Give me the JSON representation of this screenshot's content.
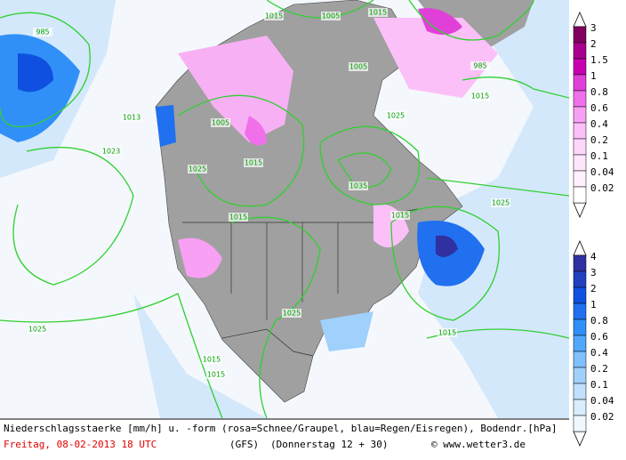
{
  "map": {
    "isobar_labels": [
      "985",
      "1015",
      "1005",
      "1015",
      "1013",
      "1023",
      "1005",
      "1015",
      "1025",
      "1025",
      "1035",
      "1015",
      "1015",
      "1025",
      "1025",
      "1025",
      "1015",
      "1015",
      "1015",
      "985",
      "1005",
      "1015"
    ]
  },
  "legend_snow": {
    "labels": [
      "3",
      "2",
      "1.5",
      "1",
      "0.8",
      "0.6",
      "0.4",
      "0.2",
      "0.1",
      "0.04",
      "0.02"
    ],
    "colors": [
      "#800060",
      "#a8008c",
      "#c800b0",
      "#e040d8",
      "#f070ec",
      "#f8a0f4",
      "#fcc0f8",
      "#fdd6fb",
      "#fee6fd",
      "#fff2fe",
      "#ffffff"
    ]
  },
  "legend_rain": {
    "labels": [
      "4",
      "3",
      "2",
      "1",
      "0.8",
      "0.6",
      "0.4",
      "0.2",
      "0.1",
      "0.04",
      "0.02"
    ],
    "colors": [
      "#3030a0",
      "#2040c0",
      "#1050e0",
      "#2070f0",
      "#3090f8",
      "#50a8fc",
      "#80c0fc",
      "#a0d0fc",
      "#c0e0fe",
      "#d8eefe",
      "#f0f8ff"
    ]
  },
  "caption": {
    "line1": "Niederschlagsstaerke [mm/h] u. -form (rosa=Schnee/Graupel, blau=Regen/Eisregen), Bodendr.[hPa]",
    "date": "Freitag, 08-02-2013  18 UTC",
    "model": "(GFS)",
    "run": "(Donnerstag 12 + 30)",
    "source": "© www.wetter3.de"
  }
}
